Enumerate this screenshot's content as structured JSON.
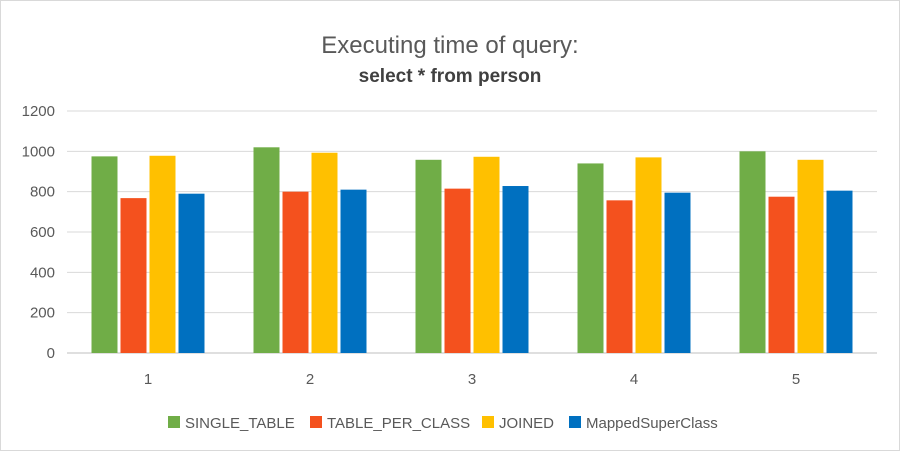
{
  "chart_data": {
    "type": "bar",
    "title": "Executing time of query:",
    "subtitle": "select * from person",
    "xlabel": "",
    "ylabel": "",
    "categories": [
      "1",
      "2",
      "3",
      "4",
      "5"
    ],
    "ylim": [
      0,
      1200
    ],
    "yticks": [
      0,
      200,
      400,
      600,
      800,
      1000,
      1200
    ],
    "grid": true,
    "legend_position": "bottom",
    "series": [
      {
        "name": "SINGLE_TABLE",
        "color": "#70ad47",
        "values": [
          975,
          1020,
          958,
          940,
          1000
        ]
      },
      {
        "name": "TABLE_PER_CLASS",
        "color": "#f4511e",
        "values": [
          768,
          800,
          815,
          757,
          775
        ]
      },
      {
        "name": "JOINED",
        "color": "#ffc000",
        "values": [
          978,
          993,
          973,
          970,
          958
        ]
      },
      {
        "name": "MappedSuperClass",
        "color": "#0070c0",
        "values": [
          790,
          810,
          828,
          795,
          805
        ]
      }
    ]
  }
}
